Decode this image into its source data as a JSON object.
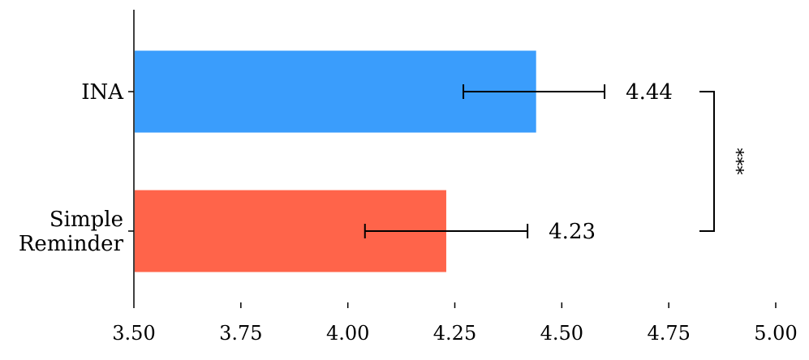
{
  "chart_data": {
    "type": "bar",
    "orientation": "horizontal",
    "title": "",
    "xlabel": "",
    "ylabel": "",
    "xlim": [
      3.5,
      5.0
    ],
    "xticks": [
      "3.50",
      "3.75",
      "4.00",
      "4.25",
      "4.50",
      "4.75",
      "5.00"
    ],
    "grid": false,
    "categories": [
      {
        "label_lines": [
          "INA"
        ],
        "value": 4.44,
        "value_label": "4.44",
        "error_low": 4.27,
        "error_high": 4.6,
        "color": "#3A9DFC"
      },
      {
        "label_lines": [
          "Simple",
          "Reminder"
        ],
        "value": 4.23,
        "value_label": "4.23",
        "error_low": 4.04,
        "error_high": 4.42,
        "color": "#FF644A"
      }
    ],
    "annotation": {
      "text": "***",
      "between": [
        0,
        1
      ]
    }
  }
}
